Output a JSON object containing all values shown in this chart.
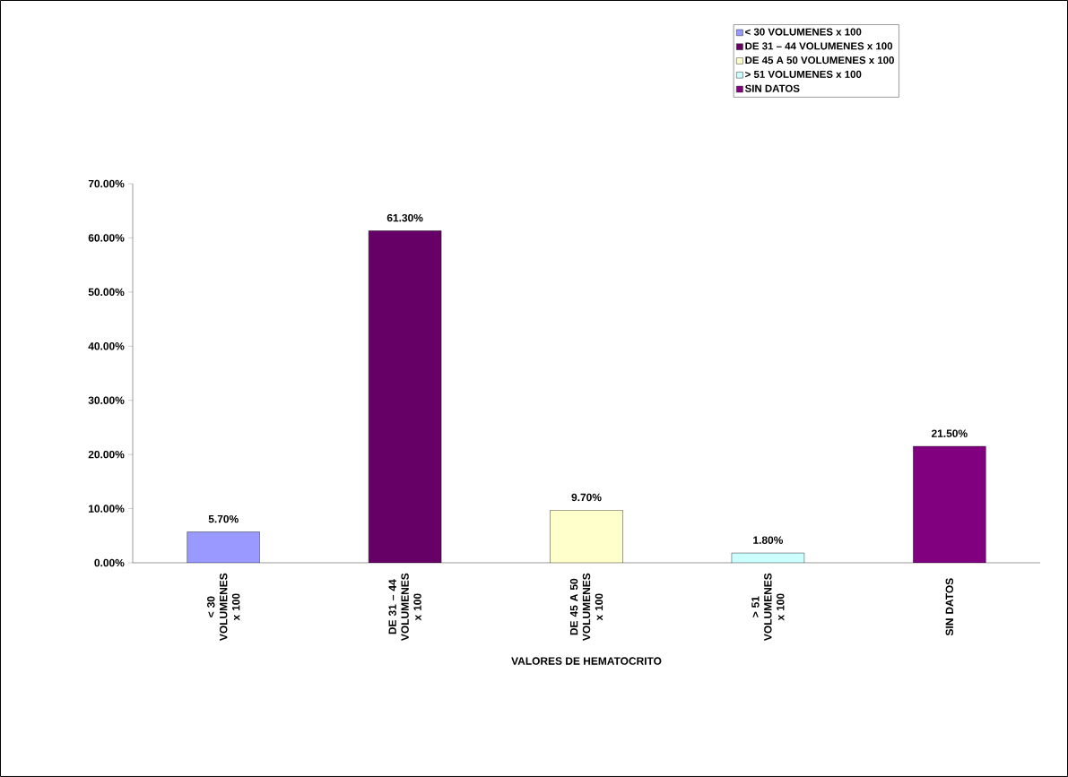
{
  "chart_data": {
    "type": "bar",
    "xlabel": "VALORES DE HEMATOCRITO",
    "categories": [
      "< 30 VOLUMENES x 100",
      "DE 31 – 44 VOLUMENES x 100",
      "DE 45 A 50 VOLUMENES x 100",
      "> 51 VOLUMENES x 100",
      "SIN DATOS"
    ],
    "series": [
      {
        "name": "< 30 VOLUMENES x 100",
        "color": "#9999ff",
        "values": [
          5.7,
          null,
          null,
          null,
          null
        ],
        "value_labels": [
          "5.70%",
          null,
          null,
          null,
          null
        ]
      },
      {
        "name": "DE 31 – 44 VOLUMENES x 100",
        "color": "#660066",
        "values": [
          null,
          61.3,
          null,
          null,
          null
        ],
        "value_labels": [
          null,
          "61.30%",
          null,
          null,
          null
        ]
      },
      {
        "name": "DE 45 A 50 VOLUMENES x 100",
        "color": "#ffffcc",
        "values": [
          null,
          null,
          9.7,
          null,
          null
        ],
        "value_labels": [
          null,
          null,
          "9.70%",
          null,
          null
        ]
      },
      {
        "name": "> 51 VOLUMENES x 100",
        "color": "#ccffff",
        "values": [
          null,
          null,
          null,
          1.8,
          null
        ],
        "value_labels": [
          null,
          null,
          null,
          "1.80%",
          null
        ]
      },
      {
        "name": "SIN DATOS",
        "color": "#800080",
        "values": [
          null,
          null,
          null,
          null,
          21.5
        ],
        "value_labels": [
          null,
          null,
          null,
          null,
          "21.50%"
        ]
      }
    ],
    "ylim": [
      0,
      70
    ],
    "yticks": [
      {
        "value": 0,
        "label": "0.00%"
      },
      {
        "value": 10,
        "label": "10.00%"
      },
      {
        "value": 20,
        "label": "20.00%"
      },
      {
        "value": 30,
        "label": "30.00%"
      },
      {
        "value": 40,
        "label": "40.00%"
      },
      {
        "value": 50,
        "label": "50.00%"
      },
      {
        "value": 60,
        "label": "60.00%"
      },
      {
        "value": 70,
        "label": "70.00%"
      }
    ],
    "legend": "top right",
    "grid": false
  }
}
